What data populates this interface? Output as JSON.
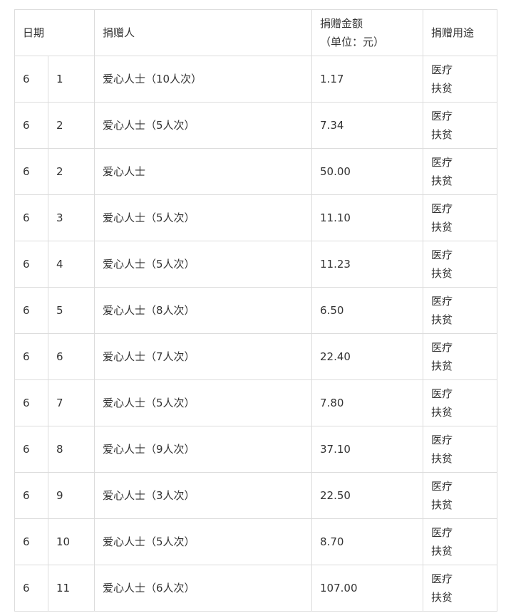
{
  "header": {
    "date": "日期",
    "donor": "捐赠人",
    "amount_line1": "捐赠金额",
    "amount_line2": "（单位：元）",
    "purpose": "捐赠用途"
  },
  "rows": [
    {
      "month": "6",
      "day": "1",
      "donor": "爱心人士（10人次）",
      "amount": "1.17",
      "purpose": [
        "医疗",
        "扶贫"
      ]
    },
    {
      "month": "6",
      "day": "2",
      "donor": "爱心人士（5人次）",
      "amount": "7.34",
      "purpose": [
        "医疗",
        "扶贫"
      ]
    },
    {
      "month": "6",
      "day": "2",
      "donor": "爱心人士",
      "amount": "50.00",
      "purpose": [
        "医疗",
        "扶贫"
      ]
    },
    {
      "month": "6",
      "day": "3",
      "donor": "爱心人士（5人次）",
      "amount": "11.10",
      "purpose": [
        "医疗",
        "扶贫"
      ]
    },
    {
      "month": "6",
      "day": "4",
      "donor": "爱心人士（5人次）",
      "amount": "11.23",
      "purpose": [
        "医疗",
        "扶贫"
      ]
    },
    {
      "month": "6",
      "day": "5",
      "donor": "爱心人士（8人次）",
      "amount": "6.50",
      "purpose": [
        "医疗",
        "扶贫"
      ]
    },
    {
      "month": "6",
      "day": "6",
      "donor": "爱心人士（7人次）",
      "amount": "22.40",
      "purpose": [
        "医疗",
        "扶贫"
      ]
    },
    {
      "month": "6",
      "day": "7",
      "donor": "爱心人士（5人次）",
      "amount": "7.80",
      "purpose": [
        "医疗",
        "扶贫"
      ]
    },
    {
      "month": "6",
      "day": "8",
      "donor": "爱心人士（9人次）",
      "amount": "37.10",
      "purpose": [
        "医疗",
        "扶贫"
      ]
    },
    {
      "month": "6",
      "day": "9",
      "donor": "爱心人士（3人次）",
      "amount": "22.50",
      "purpose": [
        "医疗",
        "扶贫"
      ]
    },
    {
      "month": "6",
      "day": "10",
      "donor": "爱心人士（5人次）",
      "amount": "8.70",
      "purpose": [
        "医疗",
        "扶贫"
      ]
    },
    {
      "month": "6",
      "day": "11",
      "donor": "爱心人士（6人次）",
      "amount": "107.00",
      "purpose": [
        "医疗",
        "扶贫"
      ]
    }
  ]
}
